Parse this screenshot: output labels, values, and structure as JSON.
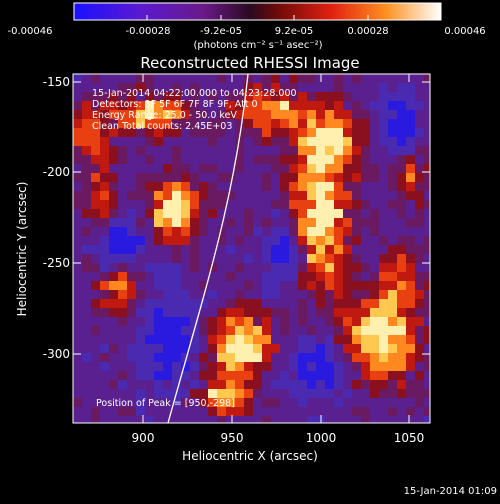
{
  "colorbar": {
    "tick_labels": [
      "-0.00046",
      "-0.00028",
      "-9.2e-05",
      "9.2e-05",
      "0.00028",
      "0.00046"
    ],
    "units": "(photons cm⁻² s⁻¹ asec⁻²)"
  },
  "plot": {
    "title": "Reconstructed RHESSI Image",
    "info_lines": [
      "15-Jan-2014 04:22:00.000 to 04:23:28.000",
      "Detectors: 3F 5F 6F 7F 8F 9F, Att 0",
      "Energy Range: 25.0 - 50.0 keV",
      "Clean    Total counts: 2.45E+03"
    ],
    "peak_label": "Position of Peak = [950,-298]",
    "xlabel": "Heliocentric X (arcsec)",
    "ylabel": "Heliocentric Y (arcsec)",
    "x_ticks": [
      "900",
      "950",
      "1000",
      "1050"
    ],
    "y_ticks": [
      "-150",
      "-200",
      "-250",
      "-300"
    ]
  },
  "footer": {
    "timestamp": "15-Jan-2014 01:09"
  }
}
